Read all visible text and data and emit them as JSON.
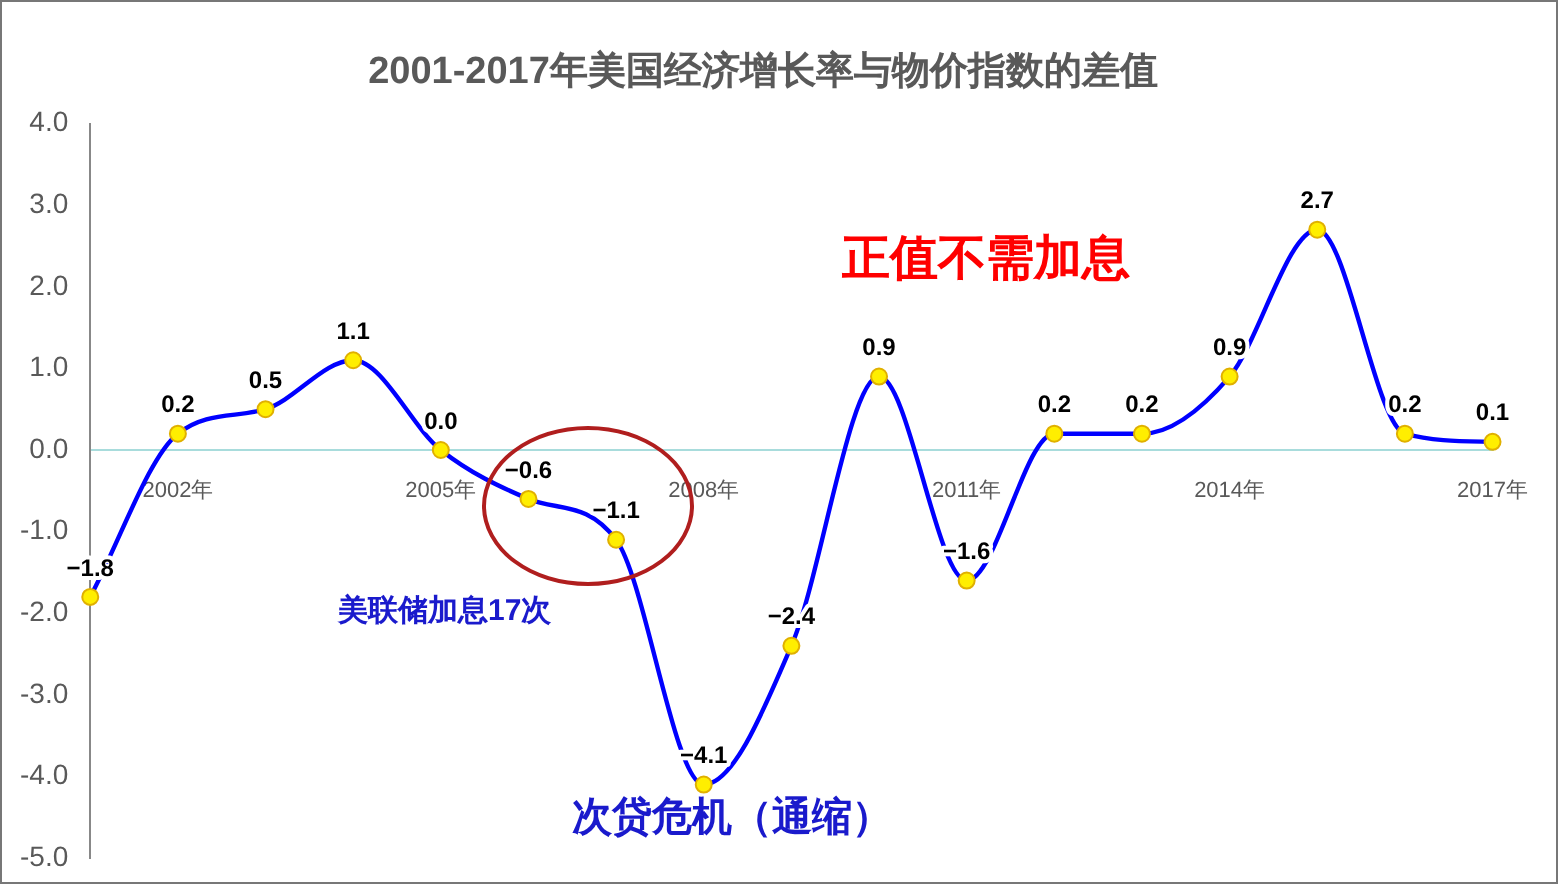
{
  "chart_data": {
    "type": "line",
    "title": "2001-2017年美国经济增长率与物价指数的差值",
    "categories": [
      null,
      "2002年",
      null,
      null,
      "2005年",
      null,
      null,
      "2008年",
      null,
      null,
      "2011年",
      null,
      null,
      "2014年",
      null,
      null,
      "2017年"
    ],
    "series": [
      {
        "color": "#0000ff",
        "values": [
          -1.8,
          0.2,
          0.5,
          1.1,
          0.0,
          -0.6,
          -1.1,
          -4.1,
          -2.4,
          0.9,
          -1.6,
          0.2,
          0.2,
          0.9,
          2.7,
          0.2,
          0.1
        ],
        "value_labels": [
          "−1.8",
          "0.2",
          "0.5",
          "1.1",
          "0.0",
          "−0.6",
          "−1.1",
          "−4.1",
          "−2.4",
          "0.9",
          "−1.6",
          "0.2",
          "0.2",
          "0.9",
          "2.7",
          "0.2",
          "0.1"
        ]
      }
    ],
    "ylim": [
      -5,
      4
    ],
    "yticks": [
      {
        "value": -5,
        "label": "-5.0"
      },
      {
        "value": -4,
        "label": "-4.0"
      },
      {
        "value": -3,
        "label": "-3.0"
      },
      {
        "value": -2,
        "label": "-2.0"
      },
      {
        "value": -1,
        "label": "-1.0"
      },
      {
        "value": 0,
        "label": "0.0"
      },
      {
        "value": 1,
        "label": "1.0"
      },
      {
        "value": 2,
        "label": "2.0"
      },
      {
        "value": 3,
        "label": "3.0"
      },
      {
        "value": 4,
        "label": "4.0"
      }
    ],
    "annotations": [
      "正值不需加息",
      "美联储加息17次",
      "次贷危机（通缩）"
    ],
    "data_labels": true,
    "marker": "circle",
    "grid": false,
    "legend": false
  }
}
